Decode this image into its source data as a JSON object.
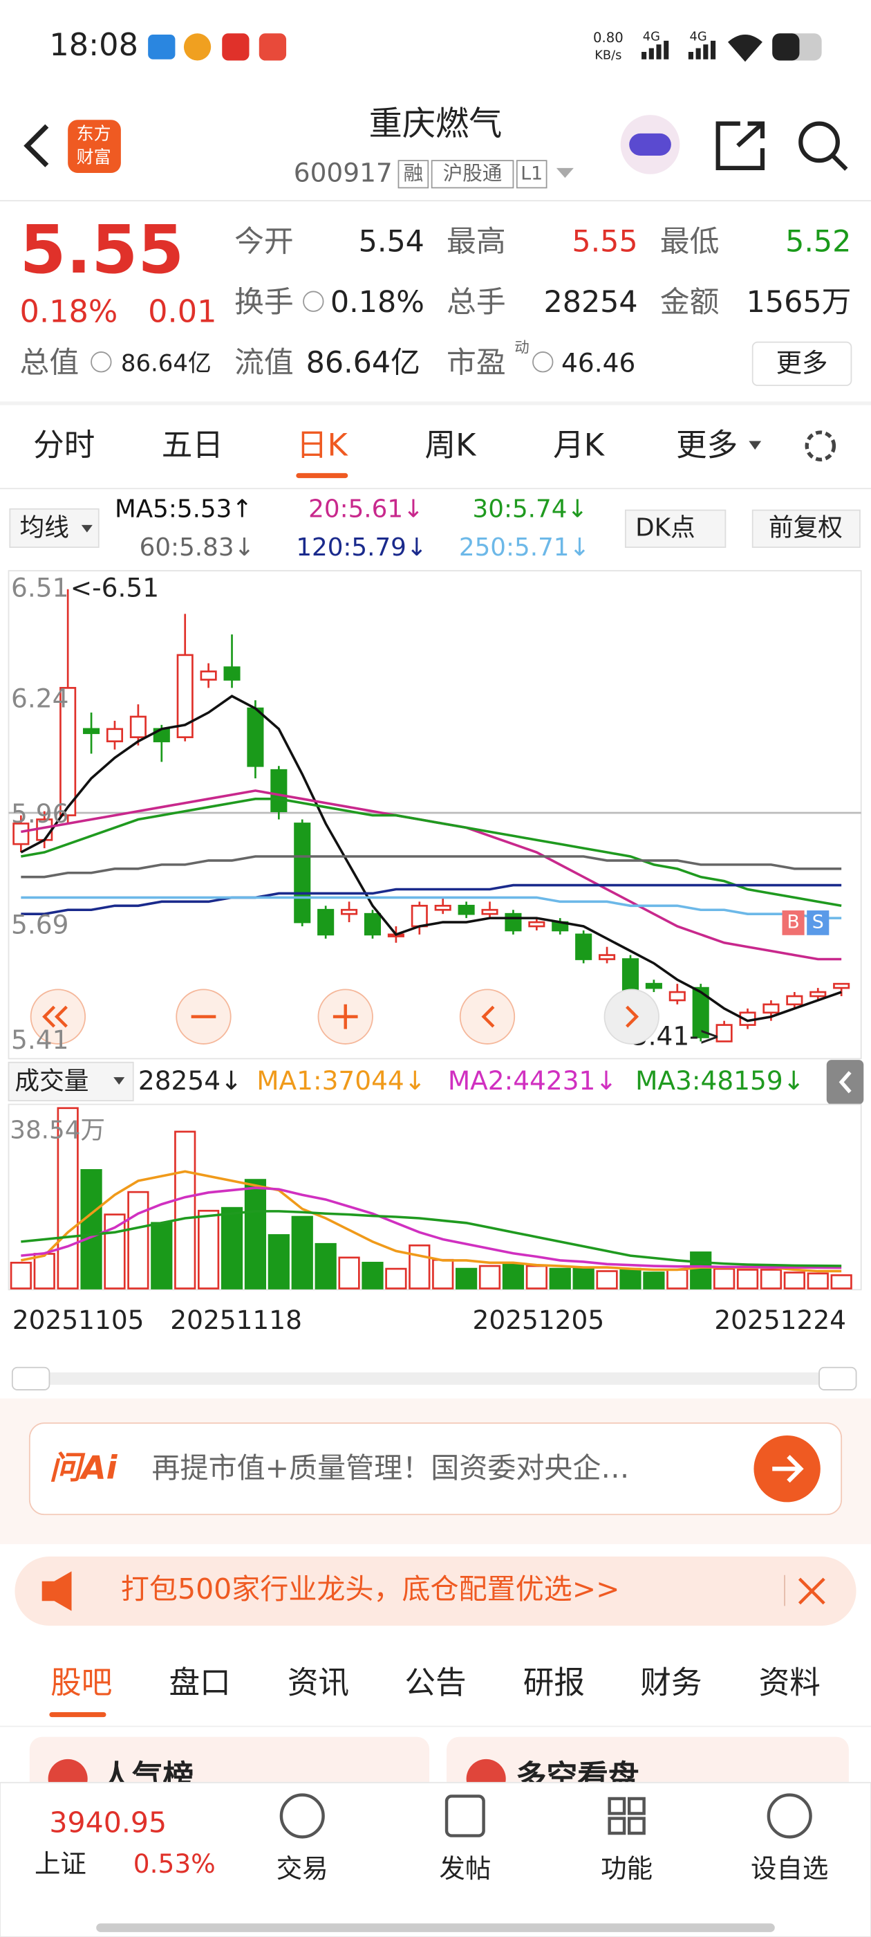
{
  "status_bar": {
    "time": "18:08",
    "speed": "0.80",
    "speed_unit": "KB/s",
    "net1": "4G",
    "net2": "4G"
  },
  "header": {
    "logo": [
      "东方",
      "财富"
    ],
    "title": "重庆燃气",
    "code": "600917",
    "tags": [
      "融",
      "沪股通",
      "L1"
    ]
  },
  "quote": {
    "price": "5.55",
    "change_pct": "0.18%",
    "change": "0.01",
    "fields": [
      {
        "label": "今开",
        "value": "5.54"
      },
      {
        "label": "最高",
        "value": "5.55"
      },
      {
        "label": "最低",
        "value": "5.52"
      },
      {
        "label": "换手",
        "value": "0.18%"
      },
      {
        "label": "总手",
        "value": "28254"
      },
      {
        "label": "金额",
        "value": "1565万"
      },
      {
        "label": "总值",
        "value": "86.64亿"
      },
      {
        "label": "流值",
        "value": "86.64亿"
      },
      {
        "label": "市盈",
        "sup": "动",
        "value": "46.46"
      }
    ],
    "more": "更多"
  },
  "period_tabs": [
    "分时",
    "五日",
    "日K",
    "周K",
    "月K",
    "更多"
  ],
  "kline": {
    "ma_button": "均线",
    "dk": "DK点",
    "adjust": "前复权",
    "ylim": [
      5.41,
      6.51
    ],
    "yticks": [
      6.51,
      6.24,
      5.96,
      5.69,
      5.41
    ],
    "high_note": "<-6.51",
    "low_note": "5.41->",
    "trade_marks": [
      "B",
      "S"
    ],
    "candles": {
      "open": [
        5.89,
        5.9,
        5.96,
        6.17,
        6.14,
        6.15,
        6.17,
        6.15,
        6.29,
        6.32,
        6.22,
        6.07,
        5.94,
        5.73,
        5.72,
        5.72,
        5.67,
        5.69,
        5.73,
        5.74,
        5.72,
        5.72,
        5.69,
        5.7,
        5.67,
        5.61,
        5.61,
        5.55,
        5.51,
        5.54,
        5.41,
        5.45,
        5.48,
        5.5,
        5.52,
        5.54
      ],
      "close": [
        5.94,
        5.95,
        6.27,
        6.16,
        6.17,
        6.2,
        6.14,
        6.35,
        6.31,
        6.29,
        6.08,
        5.97,
        5.7,
        5.67,
        5.73,
        5.67,
        5.67,
        5.74,
        5.74,
        5.72,
        5.73,
        5.68,
        5.7,
        5.68,
        5.61,
        5.62,
        5.53,
        5.54,
        5.53,
        5.42,
        5.45,
        5.48,
        5.5,
        5.52,
        5.53,
        5.55
      ],
      "high": [
        5.96,
        5.97,
        6.51,
        6.21,
        6.19,
        6.23,
        6.18,
        6.45,
        6.33,
        6.4,
        6.24,
        6.08,
        5.95,
        5.74,
        5.75,
        5.73,
        5.69,
        5.75,
        5.76,
        5.75,
        5.75,
        5.73,
        5.71,
        5.71,
        5.68,
        5.64,
        5.62,
        5.56,
        5.55,
        5.55,
        5.46,
        5.49,
        5.51,
        5.53,
        5.54,
        5.55
      ],
      "low": [
        5.87,
        5.88,
        5.94,
        6.11,
        6.12,
        6.13,
        6.09,
        6.14,
        6.27,
        6.27,
        6.05,
        5.95,
        5.69,
        5.66,
        5.7,
        5.66,
        5.65,
        5.67,
        5.72,
        5.71,
        5.71,
        5.67,
        5.68,
        5.67,
        5.6,
        5.6,
        5.52,
        5.53,
        5.5,
        5.41,
        5.41,
        5.44,
        5.46,
        5.49,
        5.51,
        5.52
      ]
    },
    "ma": [
      {
        "label": "MA5:5.53↑",
        "color": "#111111",
        "values": [
          5.87,
          5.9,
          5.98,
          6.05,
          6.1,
          6.14,
          6.17,
          6.18,
          6.21,
          6.25,
          6.22,
          6.17,
          6.06,
          5.94,
          5.84,
          5.74,
          5.67,
          5.69,
          5.7,
          5.7,
          5.71,
          5.71,
          5.71,
          5.7,
          5.69,
          5.66,
          5.63,
          5.6,
          5.56,
          5.53,
          5.49,
          5.46,
          5.47,
          5.49,
          5.51,
          5.53
        ]
      },
      {
        "label": "20:5.61↓",
        "color": "#c8288c",
        "values": [
          5.92,
          5.93,
          5.94,
          5.95,
          5.96,
          5.97,
          5.98,
          5.99,
          6.0,
          6.01,
          6.02,
          6.01,
          6.0,
          5.99,
          5.98,
          5.97,
          5.96,
          5.95,
          5.94,
          5.93,
          5.91,
          5.89,
          5.87,
          5.84,
          5.81,
          5.78,
          5.75,
          5.72,
          5.69,
          5.67,
          5.65,
          5.64,
          5.63,
          5.62,
          5.61,
          5.61
        ]
      },
      {
        "label": "30:5.74↓",
        "color": "#1f9a1f",
        "values": [
          5.86,
          5.87,
          5.89,
          5.91,
          5.93,
          5.95,
          5.96,
          5.97,
          5.98,
          5.99,
          6.0,
          6.0,
          5.99,
          5.98,
          5.97,
          5.96,
          5.96,
          5.95,
          5.94,
          5.93,
          5.92,
          5.91,
          5.9,
          5.89,
          5.88,
          5.87,
          5.86,
          5.84,
          5.83,
          5.81,
          5.8,
          5.78,
          5.77,
          5.76,
          5.75,
          5.74
        ]
      },
      {
        "label": "60:5.83↓",
        "color": "#666666",
        "values": [
          5.81,
          5.81,
          5.82,
          5.82,
          5.83,
          5.83,
          5.84,
          5.84,
          5.85,
          5.85,
          5.86,
          5.86,
          5.86,
          5.86,
          5.86,
          5.86,
          5.86,
          5.86,
          5.86,
          5.86,
          5.86,
          5.86,
          5.86,
          5.86,
          5.86,
          5.85,
          5.85,
          5.85,
          5.85,
          5.84,
          5.84,
          5.84,
          5.84,
          5.83,
          5.83,
          5.83
        ]
      },
      {
        "label": "120:5.79↓",
        "color": "#1a2a8c",
        "values": [
          5.72,
          5.72,
          5.73,
          5.73,
          5.74,
          5.74,
          5.75,
          5.75,
          5.75,
          5.76,
          5.76,
          5.77,
          5.77,
          5.77,
          5.77,
          5.77,
          5.78,
          5.78,
          5.78,
          5.78,
          5.78,
          5.79,
          5.79,
          5.79,
          5.79,
          5.79,
          5.79,
          5.79,
          5.79,
          5.79,
          5.79,
          5.79,
          5.79,
          5.79,
          5.79,
          5.79
        ]
      },
      {
        "label": "250:5.71↓",
        "color": "#6cb8e8",
        "values": [
          5.76,
          5.76,
          5.76,
          5.76,
          5.76,
          5.76,
          5.76,
          5.76,
          5.76,
          5.76,
          5.76,
          5.76,
          5.76,
          5.76,
          5.76,
          5.76,
          5.76,
          5.76,
          5.76,
          5.76,
          5.76,
          5.76,
          5.76,
          5.75,
          5.75,
          5.75,
          5.74,
          5.74,
          5.74,
          5.73,
          5.73,
          5.72,
          5.72,
          5.72,
          5.71,
          5.71
        ]
      }
    ],
    "volume": {
      "button": "成交量",
      "current": "28254↓",
      "ylim": [
        0,
        385400
      ],
      "yticks": [
        {
          "value": 385400,
          "label": "38.54万"
        }
      ],
      "values": [
        55000,
        74000,
        385400,
        253000,
        158000,
        206000,
        140000,
        335000,
        166000,
        172000,
        232000,
        114000,
        153000,
        95000,
        66000,
        55000,
        42000,
        92000,
        61000,
        42000,
        48000,
        53000,
        48000,
        42000,
        42000,
        37000,
        42000,
        34000,
        40000,
        77000,
        42000,
        40000,
        40000,
        34000,
        32000,
        28254
      ],
      "ma": [
        {
          "label": "MA1:37044↓",
          "color": "#f09a1a",
          "values": [
            60000,
            70000,
            120000,
            160000,
            200000,
            230000,
            240000,
            250000,
            240000,
            230000,
            220000,
            210000,
            170000,
            150000,
            125000,
            100000,
            80000,
            70000,
            60000,
            60000,
            55000,
            55000,
            50000,
            48000,
            45000,
            45000,
            42000,
            40000,
            40000,
            45000,
            45000,
            45000,
            45000,
            40000,
            37000,
            37044
          ]
        },
        {
          "label": "MA2:44231↓",
          "color": "#d030c0",
          "values": [
            70000,
            75000,
            90000,
            110000,
            130000,
            160000,
            180000,
            195000,
            205000,
            210000,
            215000,
            212000,
            200000,
            190000,
            175000,
            160000,
            140000,
            120000,
            105000,
            95000,
            85000,
            75000,
            68000,
            60000,
            57000,
            52000,
            50000,
            48000,
            47000,
            47000,
            46000,
            46000,
            45000,
            45000,
            44500,
            44231
          ]
        },
        {
          "label": "MA3:48159↓",
          "color": "#1f9a1f",
          "values": [
            100000,
            105000,
            110000,
            115000,
            120000,
            130000,
            140000,
            150000,
            155000,
            160000,
            165000,
            165000,
            163000,
            160000,
            158000,
            155000,
            153000,
            150000,
            145000,
            140000,
            130000,
            120000,
            110000,
            100000,
            90000,
            80000,
            70000,
            65000,
            60000,
            56000,
            53000,
            51000,
            50000,
            49000,
            48500,
            48159
          ]
        }
      ]
    },
    "dates": [
      "20251105",
      "20251118",
      "20251205",
      "20251224"
    ]
  },
  "ai": {
    "logo": "问Ai",
    "text": "再提市值+质量管理！国资委对央企…"
  },
  "banner": "打包500家行业龙头，底仓配置优选>>",
  "section_tabs": [
    "股吧",
    "盘口",
    "资讯",
    "公告",
    "研报",
    "财务",
    "资料"
  ],
  "cards": [
    "人气榜",
    "多空看盘"
  ],
  "nav": {
    "index_value": "3940.95",
    "index_name": "上证",
    "index_change": "0.53%",
    "items": [
      "交易",
      "发帖",
      "功能",
      "设自选"
    ]
  }
}
